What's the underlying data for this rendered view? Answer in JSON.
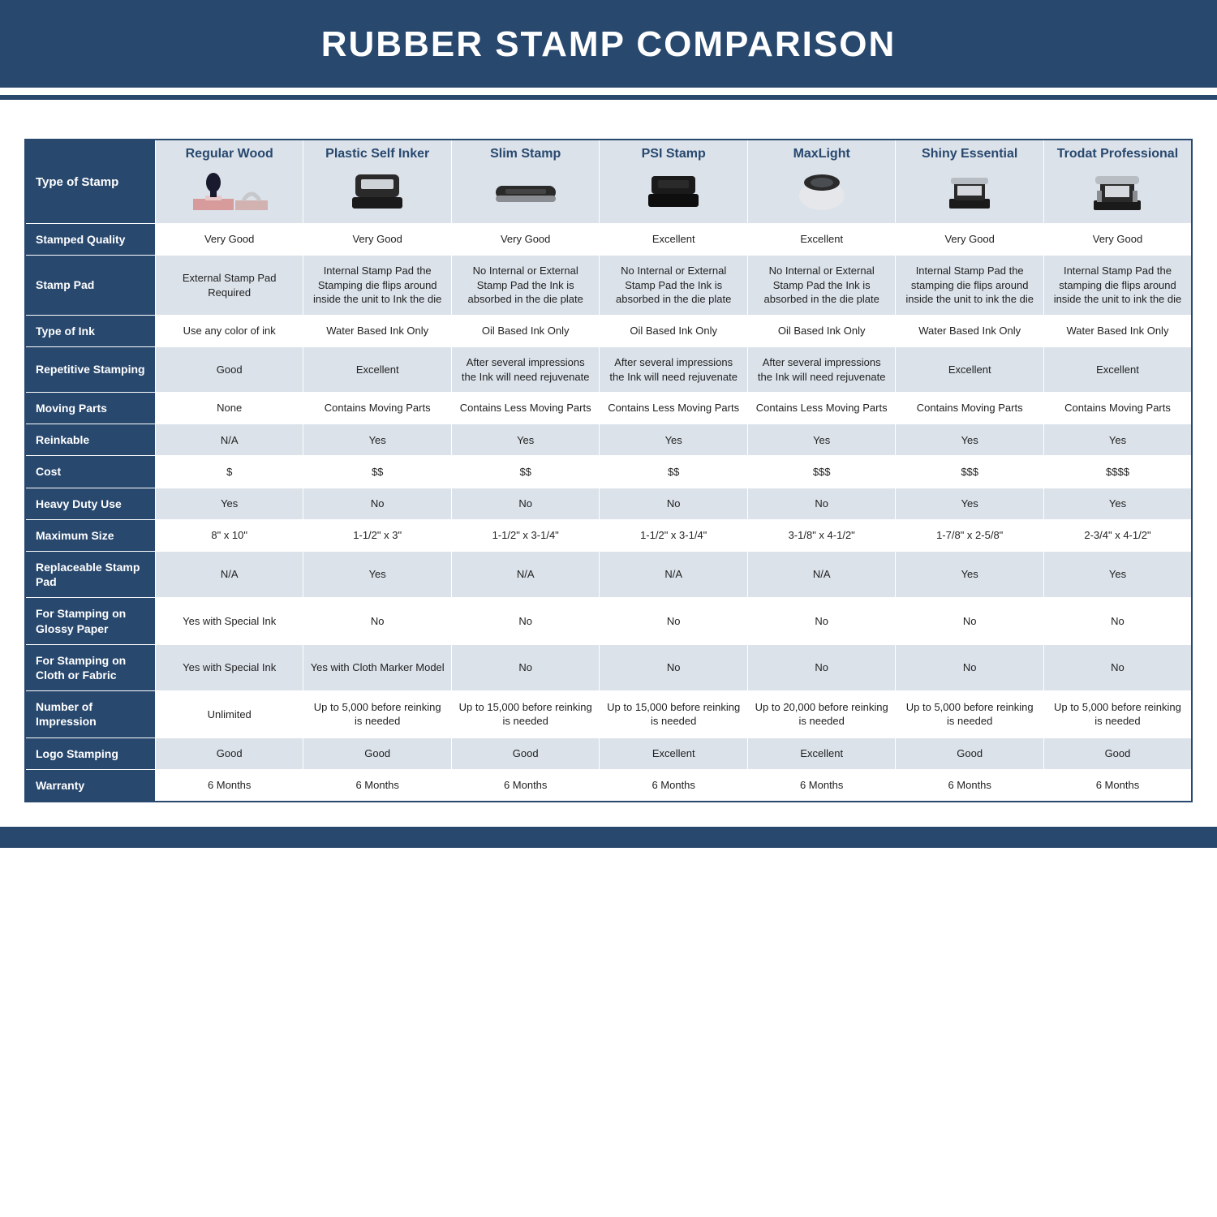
{
  "title": "RUBBER STAMP COMPARISON",
  "colors": {
    "brand": "#28486e",
    "header_bg": "#dbe2ea",
    "even_bg": "#dbe2ea",
    "odd_bg": "#ffffff",
    "text": "#1a1a1a"
  },
  "columns": [
    "Regular Wood",
    "Plastic Self Inker",
    "Slim Stamp",
    "PSI Stamp",
    "MaxLight",
    "Shiny Essential",
    "Trodat Professional"
  ],
  "type_of_stamp_label": "Type of Stamp",
  "rows": [
    {
      "label": "Stamped Quality",
      "values": [
        "Very Good",
        "Very Good",
        "Very Good",
        "Excellent",
        "Excellent",
        "Very Good",
        "Very Good"
      ]
    },
    {
      "label": "Stamp Pad",
      "values": [
        "External Stamp Pad Required",
        "Internal Stamp Pad the Stamping die flips around inside the unit to Ink the die",
        "No Internal or External Stamp Pad the Ink is absorbed in the die plate",
        "No Internal or External Stamp Pad the Ink is absorbed in the die plate",
        "No Internal or External Stamp Pad the Ink is absorbed in the die plate",
        "Internal Stamp Pad the stamping die flips around inside the unit to ink the die",
        "Internal Stamp Pad the stamping die flips around inside the unit to ink the die"
      ]
    },
    {
      "label": "Type of Ink",
      "values": [
        "Use any color of ink",
        "Water Based Ink Only",
        "Oil Based Ink Only",
        "Oil Based Ink Only",
        "Oil Based Ink Only",
        "Water Based Ink Only",
        "Water Based Ink Only"
      ]
    },
    {
      "label": "Repetitive Stamping",
      "values": [
        "Good",
        "Excellent",
        "After several impressions the Ink will need rejuvenate",
        "After several impressions the Ink will need rejuvenate",
        "After several impressions the Ink will need rejuvenate",
        "Excellent",
        "Excellent"
      ]
    },
    {
      "label": "Moving Parts",
      "values": [
        "None",
        "Contains Moving Parts",
        "Contains Less Moving Parts",
        "Contains Less Moving Parts",
        "Contains Less Moving Parts",
        "Contains Moving Parts",
        "Contains Moving Parts"
      ]
    },
    {
      "label": "Reinkable",
      "values": [
        "N/A",
        "Yes",
        "Yes",
        "Yes",
        "Yes",
        "Yes",
        "Yes"
      ]
    },
    {
      "label": "Cost",
      "values": [
        "$",
        "$$",
        "$$",
        "$$",
        "$$$",
        "$$$",
        "$$$$"
      ]
    },
    {
      "label": "Heavy Duty Use",
      "values": [
        "Yes",
        "No",
        "No",
        "No",
        "No",
        "Yes",
        "Yes"
      ]
    },
    {
      "label": "Maximum Size",
      "values": [
        "8\" x 10\"",
        "1-1/2\" x 3\"",
        "1-1/2\" x 3-1/4\"",
        "1-1/2\" x 3-1/4\"",
        "3-1/8\" x 4-1/2\"",
        "1-7/8\" x 2-5/8\"",
        "2-3/4\" x 4-1/2\""
      ]
    },
    {
      "label": "Replaceable Stamp Pad",
      "values": [
        "N/A",
        "Yes",
        "N/A",
        "N/A",
        "N/A",
        "Yes",
        "Yes"
      ]
    },
    {
      "label": "For Stamping on Glossy Paper",
      "values": [
        "Yes with Special Ink",
        "No",
        "No",
        "No",
        "No",
        "No",
        "No"
      ]
    },
    {
      "label": "For Stamping on Cloth or Fabric",
      "values": [
        "Yes with Special Ink",
        "Yes with Cloth Marker Model",
        "No",
        "No",
        "No",
        "No",
        "No"
      ]
    },
    {
      "label": "Number of Impression",
      "values": [
        "Unlimited",
        "Up to 5,000 before reinking is needed",
        "Up to 15,000 before reinking is needed",
        "Up to 15,000 before reinking is needed",
        "Up to 20,000 before reinking is needed",
        "Up to 5,000 before reinking is needed",
        "Up to 5,000 before reinking is needed"
      ]
    },
    {
      "label": "Logo Stamping",
      "values": [
        "Good",
        "Good",
        "Good",
        "Excellent",
        "Excellent",
        "Good",
        "Good"
      ]
    },
    {
      "label": "Warranty",
      "values": [
        "6 Months",
        "6 Months",
        "6 Months",
        "6 Months",
        "6 Months",
        "6 Months",
        "6 Months"
      ]
    }
  ],
  "image_row_label": "Type of Stamp",
  "stamp_icons": {
    "regular_wood": {
      "body": "#1a1a2e",
      "handle": "#dedfe2",
      "pad": "#d79b9b"
    },
    "plastic_self": {
      "body": "#2a2a2a",
      "window": "#cfd3d8"
    },
    "slim": {
      "body": "#2a2a2a",
      "band": "#8a8e93"
    },
    "psi": {
      "body": "#1a1a1a",
      "label": "#2a2a2a"
    },
    "maxlight": {
      "ring": "#2a2a2a",
      "center": "#e6e7ea"
    },
    "shiny": {
      "body": "#2a2a2a",
      "frame": "#b8bdc4"
    },
    "trodat": {
      "body": "#2a2a2a",
      "frame": "#b8bdc4"
    }
  }
}
